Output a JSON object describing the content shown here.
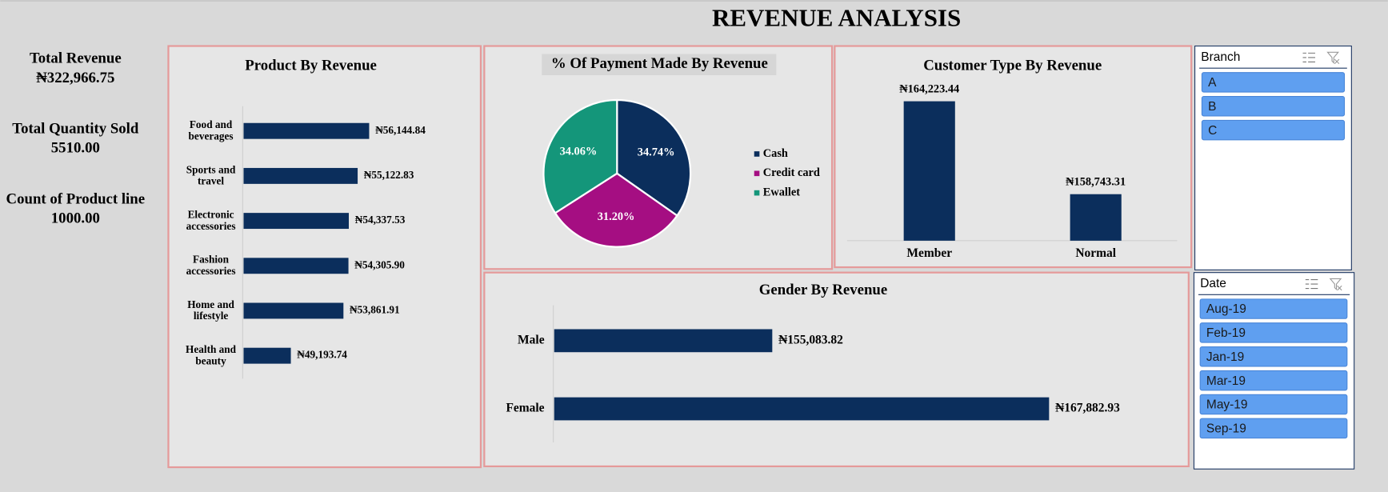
{
  "title": "REVENUE ANALYSIS",
  "kpis": [
    {
      "label": "Total Revenue",
      "value": "₦322,966.75"
    },
    {
      "label": "Total Quantity Sold",
      "value": "5510.00"
    },
    {
      "label": "Count of Product line",
      "value": "1000.00"
    }
  ],
  "chart_data": [
    {
      "type": "barh",
      "title": "Product By Revenue",
      "categories": [
        "Food and beverages",
        "Sports and travel",
        "Electronic accessories",
        "Fashion accessories",
        "Home and lifestyle",
        "Health and beauty"
      ],
      "values": [
        56144.84,
        55122.83,
        54337.53,
        54305.9,
        53861.91,
        49193.74
      ],
      "value_labels": [
        "₦56,144.84",
        "₦55,122.83",
        "₦54,337.53",
        "₦54,305.90",
        "₦53,861.91",
        "₦49,193.74"
      ],
      "color": "#0b2e5c",
      "xlim": [
        45000,
        60000
      ]
    },
    {
      "type": "pie",
      "title": "% Of Payment Made By Revenue",
      "categories": [
        "Cash",
        "Credit card",
        "Ewallet"
      ],
      "values": [
        34.74,
        31.2,
        34.06
      ],
      "value_labels": [
        "34.74%",
        "31.20%",
        "34.06%"
      ],
      "colors": [
        "#0b2e5c",
        "#a50e82",
        "#14967a"
      ]
    },
    {
      "type": "bar",
      "title": "Customer Type By Revenue",
      "categories": [
        "Member",
        "Normal"
      ],
      "values": [
        164223.44,
        158743.31
      ],
      "value_labels": [
        "₦164,223.44",
        "₦158,743.31"
      ],
      "color": "#0b2e5c",
      "ylim": [
        156000,
        166000
      ]
    },
    {
      "type": "barh",
      "title": "Gender By Revenue",
      "categories": [
        "Male",
        "Female"
      ],
      "values": [
        155083.82,
        167882.93
      ],
      "value_labels": [
        "₦155,083.82",
        "₦167,882.93"
      ],
      "color": "#0b2e5c",
      "xlim": [
        145000,
        170000
      ]
    }
  ],
  "slicers": [
    {
      "title": "Branch",
      "items": [
        "A",
        "B",
        "C"
      ]
    },
    {
      "title": "Date",
      "items": [
        "Aug-19",
        "Feb-19",
        "Jan-19",
        "Mar-19",
        "May-19",
        "Sep-19"
      ]
    }
  ]
}
